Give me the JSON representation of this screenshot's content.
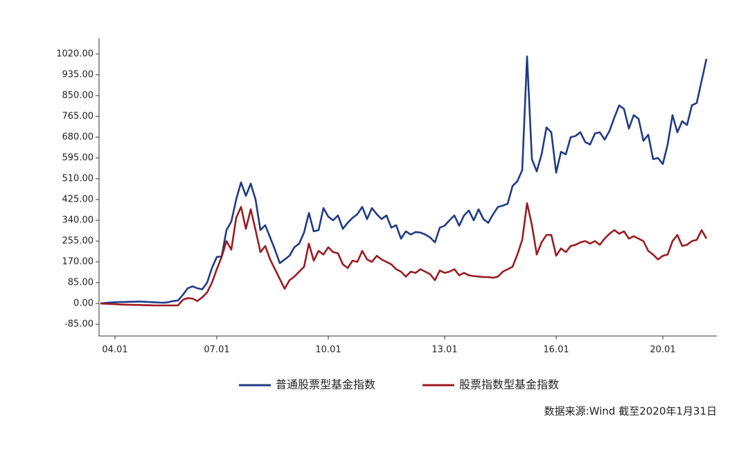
{
  "chart_data": {
    "type": "line",
    "source": "数据来源:Wind 截至2020年1月31日",
    "categories": [
      null,
      null,
      null,
      "04.01",
      null,
      null,
      null,
      null,
      null,
      null,
      null,
      null,
      null,
      null,
      null,
      null,
      null,
      null,
      null,
      null,
      null,
      null,
      null,
      null,
      "07.01",
      null,
      null,
      null,
      null,
      null,
      null,
      null,
      null,
      null,
      null,
      null,
      null,
      null,
      null,
      null,
      null,
      null,
      null,
      null,
      null,
      null,
      null,
      "10.01",
      null,
      null,
      null,
      null,
      null,
      null,
      null,
      null,
      null,
      null,
      null,
      null,
      null,
      null,
      null,
      null,
      null,
      null,
      null,
      null,
      null,
      null,
      null,
      "13.01",
      null,
      null,
      null,
      null,
      null,
      null,
      null,
      null,
      null,
      null,
      null,
      null,
      null,
      null,
      null,
      null,
      null,
      null,
      null,
      null,
      null,
      null,
      "16.01",
      null,
      null,
      null,
      null,
      null,
      null,
      null,
      null,
      null,
      null,
      null,
      null,
      null,
      null,
      null,
      null,
      null,
      null,
      null,
      null,
      null,
      "20.01",
      null,
      null,
      null,
      null,
      null,
      null,
      null,
      null,
      null
    ],
    "series": [
      {
        "name": "普通股票型基金指数",
        "color": "#1f3a87",
        "values": [
          0,
          2,
          4,
          5,
          6,
          6,
          7,
          7,
          8,
          7,
          6,
          5,
          4,
          3,
          5,
          10,
          12,
          35,
          62,
          70,
          62,
          58,
          85,
          145,
          190,
          192,
          300,
          335,
          425,
          495,
          440,
          490,
          425,
          300,
          320,
          270,
          220,
          165,
          180,
          195,
          230,
          245,
          290,
          370,
          295,
          300,
          390,
          355,
          340,
          360,
          305,
          330,
          350,
          365,
          395,
          345,
          390,
          365,
          345,
          360,
          310,
          320,
          265,
          295,
          282,
          292,
          290,
          282,
          270,
          250,
          310,
          318,
          340,
          360,
          318,
          360,
          380,
          340,
          385,
          345,
          330,
          365,
          395,
          400,
          408,
          480,
          500,
          545,
          1010,
          590,
          540,
          610,
          720,
          700,
          535,
          620,
          610,
          680,
          685,
          700,
          660,
          650,
          695,
          700,
          670,
          705,
          760,
          810,
          795,
          715,
          770,
          755,
          665,
          690,
          590,
          595,
          570,
          650,
          770,
          700,
          745,
          730,
          810,
          820,
          910,
          1000
        ]
      },
      {
        "name": "股票指数型基金指数",
        "color": "#9b1b1f",
        "values": [
          0,
          -1,
          -2,
          -3,
          -4,
          -5,
          -5,
          -6,
          -6,
          -7,
          -7,
          -8,
          -8,
          -8,
          -8,
          -8,
          -8,
          15,
          22,
          20,
          10,
          25,
          45,
          85,
          140,
          190,
          255,
          220,
          350,
          395,
          305,
          385,
          300,
          210,
          235,
          180,
          140,
          100,
          60,
          95,
          110,
          130,
          150,
          245,
          175,
          215,
          200,
          230,
          210,
          205,
          160,
          145,
          175,
          170,
          215,
          180,
          170,
          195,
          180,
          170,
          160,
          140,
          130,
          110,
          130,
          125,
          140,
          130,
          120,
          95,
          135,
          125,
          130,
          140,
          115,
          125,
          115,
          112,
          110,
          108,
          108,
          105,
          110,
          130,
          140,
          150,
          200,
          260,
          410,
          320,
          200,
          250,
          280,
          280,
          195,
          225,
          210,
          235,
          240,
          250,
          255,
          245,
          255,
          240,
          265,
          285,
          300,
          285,
          295,
          265,
          275,
          265,
          255,
          215,
          200,
          180,
          195,
          200,
          255,
          280,
          235,
          240,
          255,
          260,
          300,
          265
        ]
      }
    ],
    "ylim": [
      -133,
      1085
    ],
    "yticks": [
      {
        "value": -85,
        "label": "-85.00"
      },
      {
        "value": 0,
        "label": "0.00"
      },
      {
        "value": 85,
        "label": "85.00"
      },
      {
        "value": 170,
        "label": "170.00"
      },
      {
        "value": 255,
        "label": "255.00"
      },
      {
        "value": 340,
        "label": "340.00"
      },
      {
        "value": 425,
        "label": "425.00"
      },
      {
        "value": 510,
        "label": "510.00"
      },
      {
        "value": 595,
        "label": "595.00"
      },
      {
        "value": 680,
        "label": "680.00"
      },
      {
        "value": 765,
        "label": "765.00"
      },
      {
        "value": 850,
        "label": "850.00"
      },
      {
        "value": 935,
        "label": "935.00"
      },
      {
        "value": 1020,
        "label": "1020.00"
      }
    ],
    "grid": false,
    "legend": "bottom"
  }
}
